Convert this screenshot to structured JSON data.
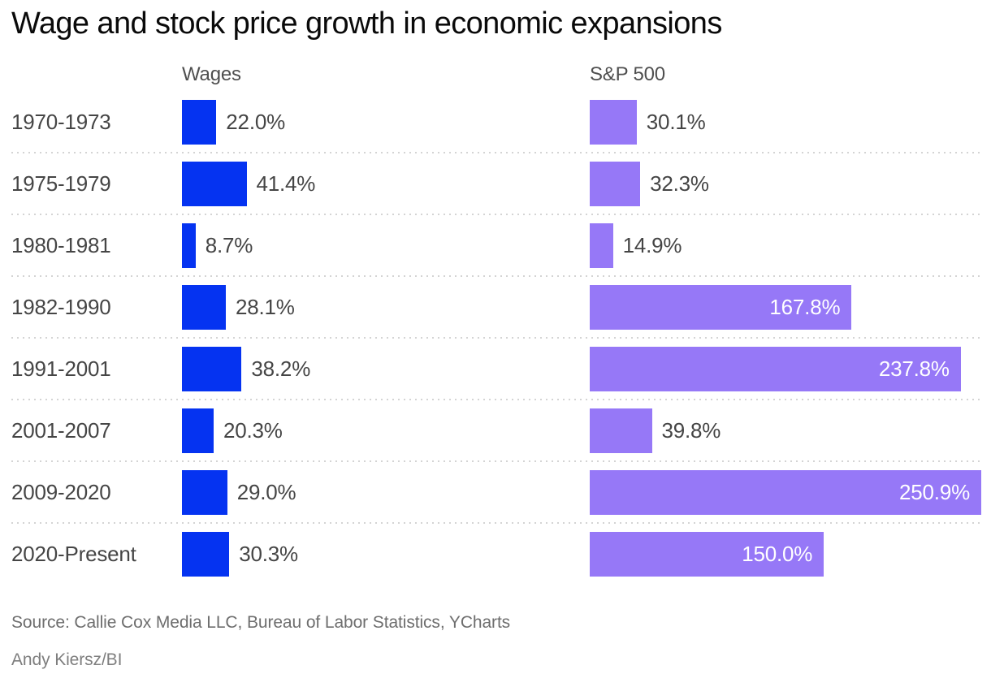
{
  "title": "Wage and stock price growth in economic expansions",
  "footer": {
    "source": "Source: Callie Cox Media LLC, Bureau of Labor Statistics, YCharts",
    "credit": "Andy Kiersz/BI"
  },
  "colors": {
    "wages_bar": "#0533f1",
    "sp500_bar": "#9678f7",
    "inside_label_text": "#ffffff",
    "outside_label_text": "#454545",
    "row_label_text": "#454545",
    "header_text": "#4f4f4f",
    "title_text": "#0a0a0a",
    "separator": "#d4d4d4"
  },
  "chart_data": {
    "type": "bar",
    "orientation": "horizontal",
    "title": "Wage and stock price growth in economic expansions",
    "categories": [
      "1970-1973",
      "1975-1979",
      "1980-1981",
      "1982-1990",
      "1991-2001",
      "2001-2007",
      "2009-2020",
      "2020-Present"
    ],
    "series": [
      {
        "name": "Wages",
        "values": [
          22.0,
          41.4,
          8.7,
          28.1,
          38.2,
          20.3,
          29.0,
          30.3
        ],
        "labels": [
          "22.0%",
          "41.4%",
          "8.7%",
          "28.1%",
          "38.2%",
          "20.3%",
          "29.0%",
          "30.3%"
        ]
      },
      {
        "name": "S&P 500",
        "values": [
          30.1,
          32.3,
          14.9,
          167.8,
          237.8,
          39.8,
          250.9,
          150.0
        ],
        "labels": [
          "30.1%",
          "32.3%",
          "14.9%",
          "167.8%",
          "237.8%",
          "39.8%",
          "250.9%",
          "150.0%"
        ]
      }
    ],
    "value_format": "percent",
    "xlim": [
      0,
      250.9
    ],
    "grid": false,
    "legend_position": "column-headers",
    "label_inside_threshold": 100
  }
}
